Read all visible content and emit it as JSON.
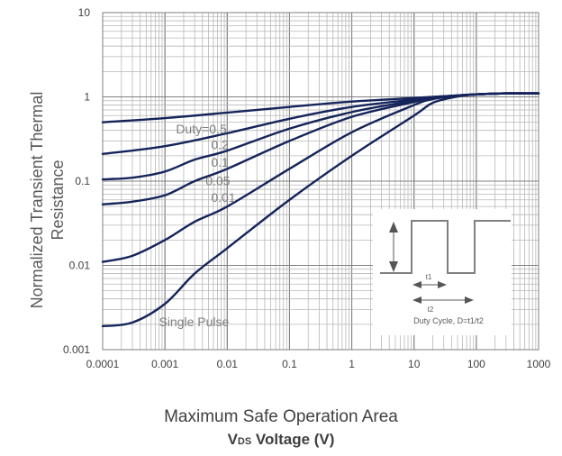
{
  "chart_data": {
    "type": "line",
    "xscale": "log",
    "yscale": "log",
    "xlim": [
      0.0001,
      1000
    ],
    "ylim": [
      0.001,
      10
    ],
    "x_ticks": [
      "0.0001",
      "0.001",
      "0.01",
      "0.1",
      "1",
      "10",
      "100",
      "1000"
    ],
    "y_ticks": [
      "0.001",
      "0.01",
      "0.1",
      "1",
      "10"
    ],
    "ylabel_lines": [
      "Normalized Transient Thermal",
      "Resistance"
    ],
    "xlabel": "Maximum Safe Operation Area",
    "xlabel2": {
      "prefix": "V",
      "sub": "DS",
      "suffix": " Voltage (V)"
    },
    "grid": true,
    "series": [
      {
        "name": "Duty=0.5",
        "x": [
          0.0001,
          0.001,
          0.01,
          0.1,
          1,
          10,
          20,
          50,
          100,
          300,
          1000
        ],
        "y": [
          0.5,
          0.56,
          0.65,
          0.76,
          0.88,
          0.97,
          1.0,
          1.04,
          1.07,
          1.1,
          1.1
        ]
      },
      {
        "name": "0.2",
        "x": [
          0.0001,
          0.001,
          0.01,
          0.1,
          1,
          10,
          20,
          50,
          100,
          300,
          1000
        ],
        "y": [
          0.21,
          0.26,
          0.37,
          0.55,
          0.76,
          0.93,
          0.99,
          1.04,
          1.07,
          1.1,
          1.1
        ]
      },
      {
        "name": "0.1",
        "x": [
          0.0001,
          0.0003,
          0.001,
          0.003,
          0.01,
          0.1,
          1,
          10,
          20,
          50,
          100,
          300,
          1000
        ],
        "y": [
          0.105,
          0.11,
          0.13,
          0.18,
          0.23,
          0.42,
          0.66,
          0.9,
          0.98,
          1.04,
          1.07,
          1.1,
          1.1
        ]
      },
      {
        "name": "0.05",
        "x": [
          0.0001,
          0.0003,
          0.001,
          0.003,
          0.01,
          0.1,
          1,
          10,
          20,
          50,
          100,
          300,
          1000
        ],
        "y": [
          0.053,
          0.057,
          0.068,
          0.1,
          0.14,
          0.3,
          0.58,
          0.87,
          0.97,
          1.03,
          1.07,
          1.1,
          1.1
        ]
      },
      {
        "name": "0.01",
        "x": [
          0.0001,
          0.0003,
          0.001,
          0.003,
          0.01,
          0.1,
          1,
          10,
          20,
          50,
          100,
          300,
          1000
        ],
        "y": [
          0.011,
          0.013,
          0.02,
          0.033,
          0.05,
          0.14,
          0.38,
          0.8,
          0.94,
          1.03,
          1.07,
          1.1,
          1.1
        ]
      },
      {
        "name": "Single Pulse",
        "x": [
          0.0001,
          0.0003,
          0.001,
          0.003,
          0.01,
          0.1,
          1,
          10,
          20,
          50,
          100,
          300,
          1000
        ],
        "y": [
          0.0019,
          0.0021,
          0.0035,
          0.008,
          0.016,
          0.06,
          0.2,
          0.6,
          0.85,
          1.01,
          1.07,
          1.1,
          1.1
        ]
      }
    ],
    "curve_labels": [
      {
        "text": "Duty=0.5",
        "x": 0.0015,
        "y": 0.37
      },
      {
        "text": "0.2",
        "x": 0.0055,
        "y": 0.24
      },
      {
        "text": "0.1",
        "x": 0.0055,
        "y": 0.148
      },
      {
        "text": "0.05",
        "x": 0.0045,
        "y": 0.09
      },
      {
        "text": "0.01",
        "x": 0.0055,
        "y": 0.057
      },
      {
        "text": "Single Pulse",
        "x": 0.0008,
        "y": 0.0019
      }
    ],
    "inset": {
      "t1_label": "t1",
      "t2_label": "t2",
      "caption": "Duty Cycle, D=t1/t2"
    }
  }
}
